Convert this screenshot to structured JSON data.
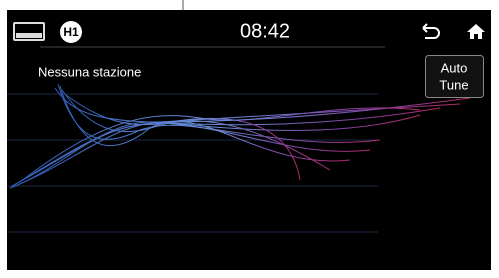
{
  "status_bar": {
    "badge": "H1",
    "time": "08:42"
  },
  "station": {
    "label": "Nessuna stazione"
  },
  "auto_tune": {
    "line1": "Auto",
    "line2": "Tune"
  }
}
